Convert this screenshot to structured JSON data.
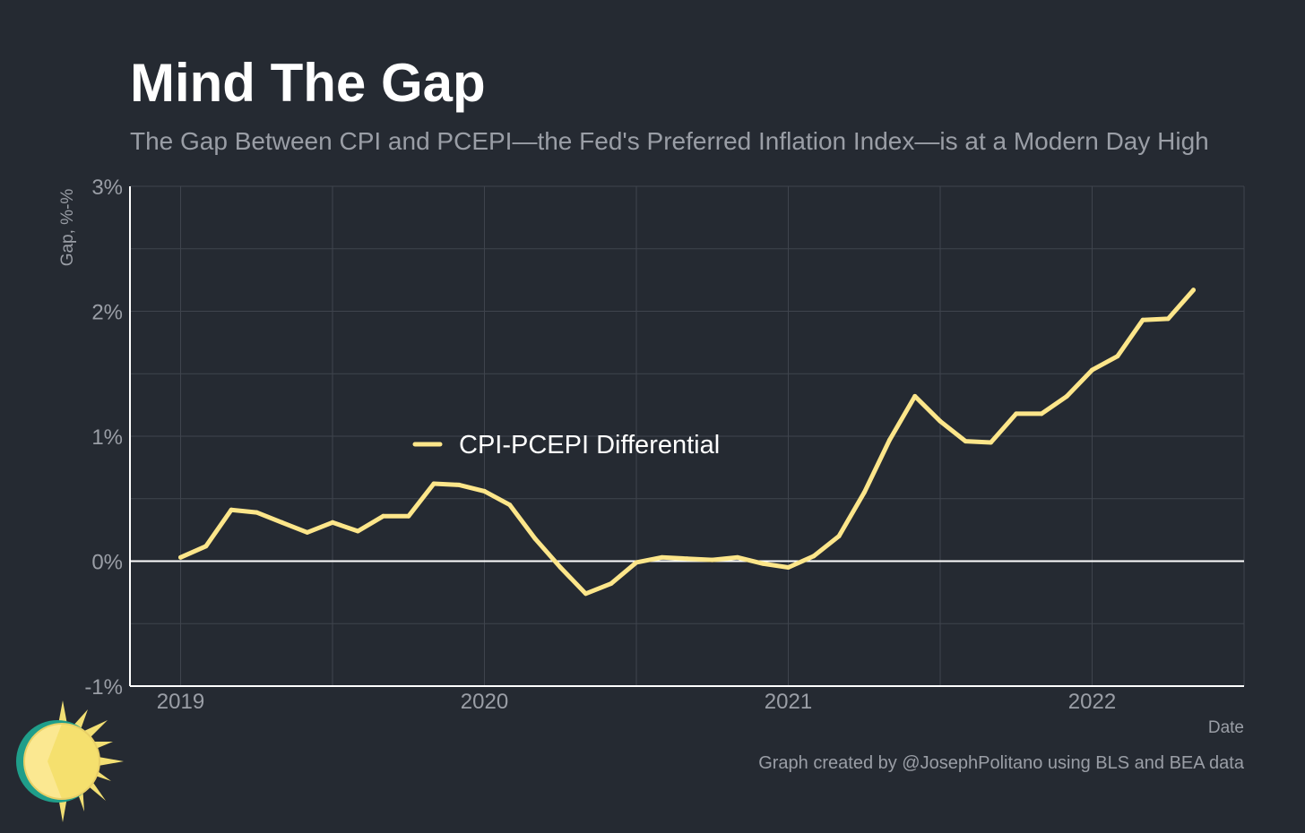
{
  "title": "Mind The Gap",
  "subtitle": "The Gap Between CPI and PCEPI—the Fed's Preferred Inflation Index—is at a Modern Day High",
  "caption": "Graph created by @JosephPolitano using BLS and BEA data",
  "colors": {
    "background": "#252a32",
    "line": "#fde68a",
    "grid": "#3f444d",
    "axis": "#ffffff",
    "text_muted": "#9a9ea6"
  },
  "chart_data": {
    "type": "line",
    "xlabel": "Date",
    "ylabel": "Gap, %-%",
    "ylim": [
      -1,
      3
    ],
    "xlim": [
      "2018-11",
      "2022-07"
    ],
    "y_ticks": [
      "-1%",
      "0%",
      "1%",
      "2%",
      "3%"
    ],
    "x_ticks": [
      "2019",
      "2020",
      "2021",
      "2022"
    ],
    "grid": true,
    "legend_position": "center-left",
    "series": [
      {
        "name": "CPI-PCEPI Differential",
        "x": [
          "2019-01",
          "2019-02",
          "2019-03",
          "2019-04",
          "2019-05",
          "2019-06",
          "2019-07",
          "2019-08",
          "2019-09",
          "2019-10",
          "2019-11",
          "2019-12",
          "2020-01",
          "2020-02",
          "2020-03",
          "2020-04",
          "2020-05",
          "2020-06",
          "2020-07",
          "2020-08",
          "2020-09",
          "2020-10",
          "2020-11",
          "2020-12",
          "2021-01",
          "2021-02",
          "2021-03",
          "2021-04",
          "2021-05",
          "2021-06",
          "2021-07",
          "2021-08",
          "2021-09",
          "2021-10",
          "2021-11",
          "2021-12",
          "2022-01",
          "2022-02",
          "2022-03",
          "2022-04",
          "2022-05"
        ],
        "values": [
          0.03,
          0.12,
          0.41,
          0.39,
          0.31,
          0.23,
          0.31,
          0.24,
          0.36,
          0.36,
          0.62,
          0.61,
          0.56,
          0.45,
          0.18,
          -0.05,
          -0.26,
          -0.18,
          -0.01,
          0.03,
          0.02,
          0.01,
          0.03,
          -0.02,
          -0.05,
          0.04,
          0.2,
          0.55,
          0.97,
          1.32,
          1.12,
          0.96,
          0.95,
          1.18,
          1.18,
          1.32,
          1.53,
          1.64,
          1.93,
          1.94,
          2.17
        ]
      }
    ]
  }
}
